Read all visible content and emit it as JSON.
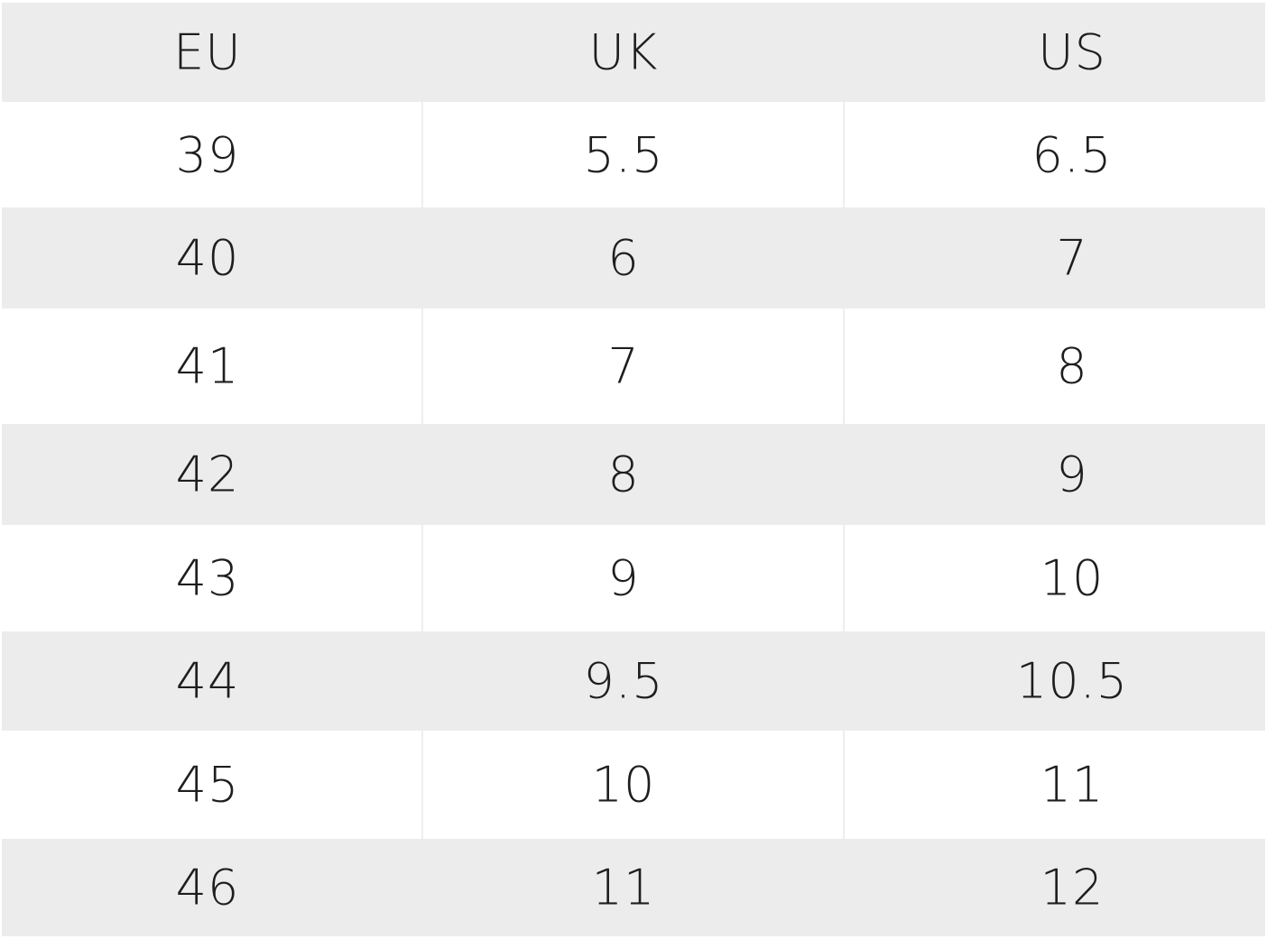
{
  "table": {
    "header": [
      "EU",
      "UK",
      "US"
    ],
    "rows": [
      [
        "39",
        "5.5",
        "6.5"
      ],
      [
        "40",
        "6",
        "7"
      ],
      [
        "41",
        "7",
        "8"
      ],
      [
        "42",
        "8",
        "9"
      ],
      [
        "43",
        "9",
        "10"
      ],
      [
        "44",
        "9.5",
        "10.5"
      ],
      [
        "45",
        "10",
        "11"
      ],
      [
        "46",
        "11",
        "12"
      ]
    ]
  }
}
